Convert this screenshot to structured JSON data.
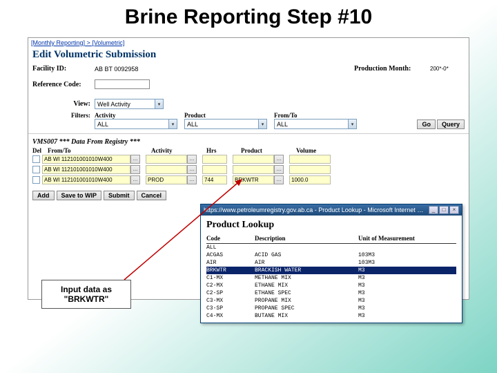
{
  "slide": {
    "title": "Brine Reporting Step #10"
  },
  "breadcrumb": {
    "a": "[Monthly Reporting]",
    "sep": " > ",
    "b": "[Volumetric]"
  },
  "page": {
    "heading": "Edit Volumetric Submission"
  },
  "facility": {
    "label": "Facility ID:",
    "value": "AB BT 0092958"
  },
  "prodmonth": {
    "label": "Production Month:",
    "value": "200*-0*"
  },
  "refcode": {
    "label": "Reference Code:",
    "value": ""
  },
  "view": {
    "label": "View:",
    "value": "Well Activity"
  },
  "filters": {
    "label": "Filters:",
    "h_activity": "Activity",
    "h_product": "Product",
    "h_fromto": "From/To",
    "activity": "ALL",
    "product": "ALL",
    "fromto": "ALL"
  },
  "buttons": {
    "go": "Go",
    "query": "Query",
    "add": "Add",
    "save": "Save to WIP",
    "submit": "Submit",
    "cancel": "Cancel"
  },
  "dataheader": "VMS007 *** Data From Registry ***",
  "thead": {
    "del": "Del",
    "fromto": "From/To",
    "activity": "Activity",
    "hrs": "Hrs",
    "product": "Product",
    "volume": "Volume"
  },
  "rows": [
    {
      "fromto": "AB WI 112101001010W400",
      "activity": "",
      "hrs": "",
      "product": "",
      "volume": ""
    },
    {
      "fromto": "AB WI 112101001010W400",
      "activity": "",
      "hrs": "",
      "product": "",
      "volume": ""
    },
    {
      "fromto": "AB WI 112101001010W400",
      "activity": "PROD",
      "hrs": "744",
      "product": "BRKWTR",
      "volume": "1000.0"
    }
  ],
  "popup": {
    "title": "https://www.petroleumregistry.gov.ab.ca - Product Lookup - Microsoft Internet Explorer",
    "heading": "Product Lookup",
    "h_code": "Code",
    "h_desc": "Description",
    "h_unit": "Unit of Measurement",
    "rows": [
      {
        "code": "ALL",
        "desc": "",
        "unit": ""
      },
      {
        "code": "ACGAS",
        "desc": "ACID GAS",
        "unit": "103M3"
      },
      {
        "code": "AIR",
        "desc": "AIR",
        "unit": "103M3"
      },
      {
        "code": "BRKWTR",
        "desc": "BRACKISH WATER",
        "unit": "M3",
        "selected": true
      },
      {
        "code": "C1-MX",
        "desc": "METHANE MIX",
        "unit": "M3"
      },
      {
        "code": "C2-MX",
        "desc": "ETHANE MIX",
        "unit": "M3"
      },
      {
        "code": "C2-SP",
        "desc": "ETHANE SPEC",
        "unit": "M3"
      },
      {
        "code": "C3-MX",
        "desc": "PROPANE MIX",
        "unit": "M3"
      },
      {
        "code": "C3-SP",
        "desc": "PROPANE SPEC",
        "unit": "M3"
      },
      {
        "code": "C4-MX",
        "desc": "BUTANE MIX",
        "unit": "M3"
      }
    ]
  },
  "callout": {
    "line1": "Input data as",
    "line2": "\"BRKWTR\""
  },
  "colors": {
    "highlight": "#0a246a",
    "yellow_input": "#ffffcc"
  }
}
